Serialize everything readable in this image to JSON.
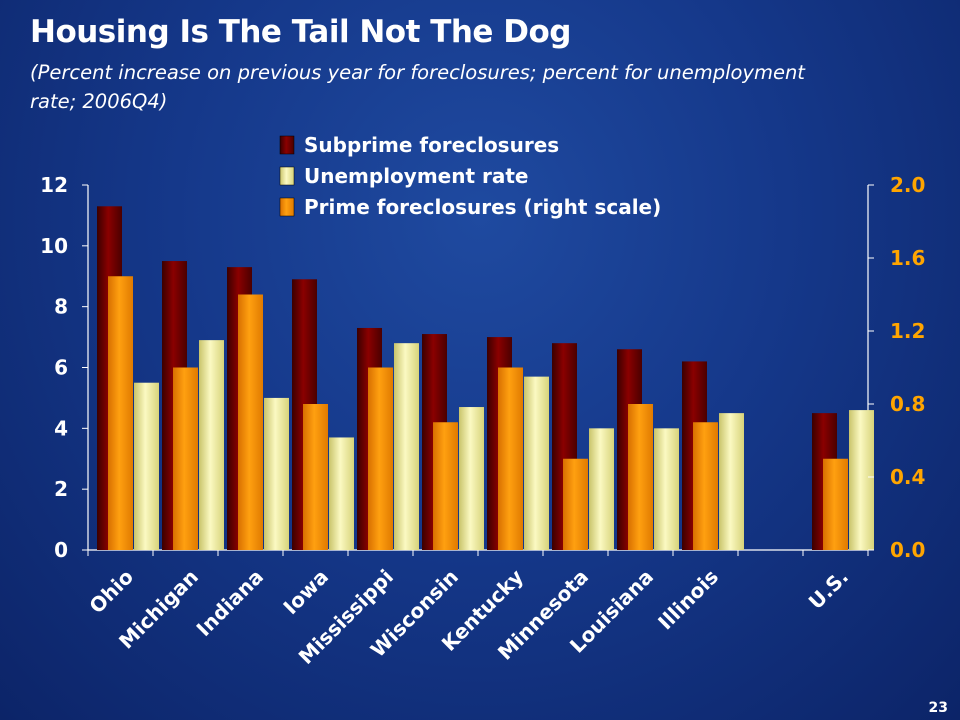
{
  "slide": {
    "title": "Housing Is The Tail Not The Dog",
    "subtitle": "(Percent increase on previous year for foreclosures; percent for unemployment rate; 2006Q4)",
    "page_number": "23"
  },
  "chart_data": {
    "type": "bar",
    "title": "Housing Is The Tail Not The Dog",
    "categories": [
      "Ohio",
      "Michigan",
      "Indiana",
      "Iowa",
      "Mississippi",
      "Wisconsin",
      "Kentucky",
      "Minnesota",
      "Louisiana",
      "Illinois",
      "",
      "U.S."
    ],
    "series": [
      {
        "name": "Subprime foreclosures",
        "axis": "left",
        "color": "#7a0000",
        "values": [
          11.3,
          9.5,
          9.3,
          8.9,
          7.3,
          7.1,
          7.0,
          6.8,
          6.6,
          6.2,
          null,
          4.5
        ]
      },
      {
        "name": "Unemployment rate",
        "axis": "left",
        "color": "#f2f0a0",
        "values": [
          5.5,
          6.9,
          5.0,
          3.7,
          6.8,
          4.7,
          5.7,
          4.0,
          4.0,
          4.5,
          null,
          4.6
        ]
      },
      {
        "name": "Prime foreclosures (right scale)",
        "axis": "right",
        "color": "#ff9a00",
        "values": [
          1.5,
          1.0,
          1.4,
          0.8,
          1.0,
          0.7,
          1.0,
          0.5,
          0.8,
          0.7,
          null,
          0.5
        ]
      }
    ],
    "draw_order": [
      0,
      2,
      1
    ],
    "yleft": {
      "min": 0,
      "max": 12,
      "ticks": [
        "0",
        "2",
        "4",
        "6",
        "8",
        "10",
        "12"
      ]
    },
    "yright": {
      "min": 0,
      "max": 2.0,
      "ticks": [
        "0.0",
        "0.4",
        "0.8",
        "1.2",
        "1.6",
        "2.0"
      ]
    },
    "grid": false,
    "legend_position": "top-center"
  }
}
